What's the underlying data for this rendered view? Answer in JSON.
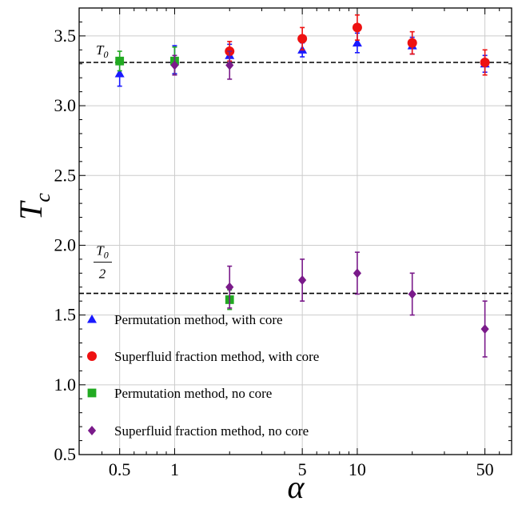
{
  "chart_data": {
    "type": "scatter",
    "xscale": "log",
    "xlim": [
      0.3,
      70
    ],
    "ylim": [
      0.5,
      3.7
    ],
    "xticks": [
      0.5,
      1,
      5,
      10,
      50
    ],
    "xtick_labels": [
      "0.5",
      "1",
      "5",
      "10",
      "50"
    ],
    "yticks": [
      0.5,
      1.0,
      1.5,
      2.0,
      2.5,
      3.0,
      3.5
    ],
    "ytick_labels": [
      "0.5",
      "1.0",
      "1.5",
      "2.0",
      "2.5",
      "3.0",
      "3.5"
    ],
    "xlabel": "α",
    "ylabel": "T",
    "ylabel_sub": "c",
    "grid": true,
    "reference_lines": [
      {
        "y": 3.31,
        "label": "T",
        "label_sub": "0",
        "label_denominator": ""
      },
      {
        "y": 1.655,
        "label": "T",
        "label_sub": "0",
        "label_denominator": "2"
      }
    ],
    "series": [
      {
        "name": "Permutation method, with core",
        "color": "#1a1aff",
        "marker": "triangle",
        "points": [
          {
            "x": 0.5,
            "y": 3.23,
            "err": 0.09
          },
          {
            "x": 1,
            "y": 3.33,
            "err": 0.1
          },
          {
            "x": 2,
            "y": 3.36,
            "err": 0.08
          },
          {
            "x": 5,
            "y": 3.4,
            "err": 0.05
          },
          {
            "x": 10,
            "y": 3.45,
            "err": 0.07
          },
          {
            "x": 20,
            "y": 3.43,
            "err": 0.06
          },
          {
            "x": 50,
            "y": 3.3,
            "err": 0.06
          }
        ]
      },
      {
        "name": "Superfluid fraction method, with core",
        "color": "#ee1111",
        "marker": "circle",
        "points": [
          {
            "x": 2,
            "y": 3.39,
            "err": 0.07
          },
          {
            "x": 5,
            "y": 3.48,
            "err": 0.08
          },
          {
            "x": 10,
            "y": 3.56,
            "err": 0.09
          },
          {
            "x": 20,
            "y": 3.45,
            "err": 0.08
          },
          {
            "x": 50,
            "y": 3.31,
            "err": 0.09
          }
        ]
      },
      {
        "name": "Permutation method, no core",
        "color": "#22aa22",
        "marker": "square",
        "points": [
          {
            "x": 0.5,
            "y": 3.32,
            "err": 0.07
          },
          {
            "x": 1,
            "y": 3.32,
            "err": 0.1
          },
          {
            "x": 2,
            "y": 1.61,
            "err": 0.07
          }
        ]
      },
      {
        "name": "Superfluid fraction method, no core",
        "color": "#7a1a8a",
        "marker": "diamond",
        "points": [
          {
            "x": 1,
            "y": 3.29,
            "err": 0.07
          },
          {
            "x": 2,
            "y": 3.29,
            "err": 0.1
          },
          {
            "x": 2,
            "y": 1.7,
            "err": 0.15
          },
          {
            "x": 5,
            "y": 1.75,
            "err": 0.15
          },
          {
            "x": 10,
            "y": 1.8,
            "err": 0.15
          },
          {
            "x": 20,
            "y": 1.65,
            "err": 0.15
          },
          {
            "x": 50,
            "y": 1.4,
            "err": 0.2
          }
        ]
      }
    ],
    "legend_position": "bottom-left"
  }
}
